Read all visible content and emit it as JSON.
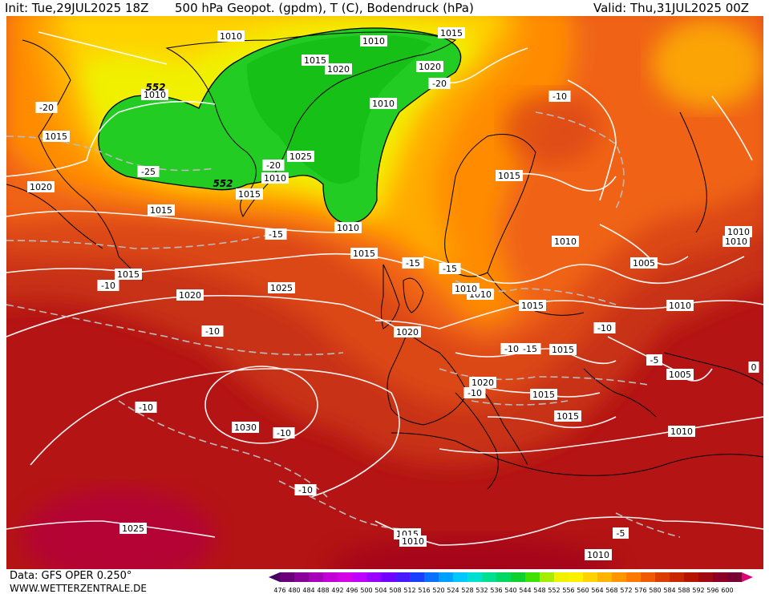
{
  "header": {
    "init": "Init: Tue,29JUL2025 18Z",
    "title": "500 hPa Geopot. (gpdm), T (C), Bodendruck (hPa)",
    "valid": "Valid: Thu,31JUL2025 00Z"
  },
  "footer": {
    "data_source": "Data: GFS OPER 0.250°",
    "website": "WWW.WETTERZENTRALE.DE"
  },
  "scale": {
    "values": [
      "476",
      "480",
      "484",
      "488",
      "492",
      "496",
      "500",
      "504",
      "508",
      "512",
      "516",
      "520",
      "524",
      "528",
      "532",
      "536",
      "540",
      "544",
      "548",
      "552",
      "556",
      "560",
      "564",
      "568",
      "572",
      "576",
      "580",
      "584",
      "588",
      "592",
      "596",
      "600"
    ],
    "colors": [
      "#6b007a",
      "#8a0099",
      "#a600b8",
      "#c200d6",
      "#d600e6",
      "#c000ff",
      "#9a00ff",
      "#7000ff",
      "#4a18ff",
      "#1a40ff",
      "#0a70ff",
      "#00a0ff",
      "#00c8ff",
      "#00e0d0",
      "#00e090",
      "#00d860",
      "#10d030",
      "#40e000",
      "#a8ec00",
      "#f0f000",
      "#fff000",
      "#ffd200",
      "#ffb400",
      "#ff9600",
      "#ff7800",
      "#f05a00",
      "#dc3c00",
      "#c82800",
      "#b41400",
      "#a00a14",
      "#8c0028",
      "#780032"
    ],
    "start_color": "#4a0060",
    "end_color": "#e0007a"
  },
  "map": {
    "isobar_labels": [
      {
        "t": "1010"
      },
      {
        "t": "1010"
      },
      {
        "t": "1015"
      },
      {
        "t": "1020"
      },
      {
        "t": "1015"
      },
      {
        "t": "1020"
      },
      {
        "t": "1010"
      },
      {
        "t": "1025"
      },
      {
        "t": "1010"
      },
      {
        "t": "1015"
      },
      {
        "t": "1010"
      },
      {
        "t": "1015"
      },
      {
        "t": "1020"
      },
      {
        "t": "1015"
      },
      {
        "t": "1010"
      },
      {
        "t": "1015"
      },
      {
        "t": "1015"
      },
      {
        "t": "1010"
      },
      {
        "t": "1015"
      },
      {
        "t": "1010"
      },
      {
        "t": "1005"
      },
      {
        "t": "1010"
      },
      {
        "t": "1020"
      },
      {
        "t": "1025"
      },
      {
        "t": "1015"
      },
      {
        "t": "1010"
      },
      {
        "t": "1020"
      },
      {
        "t": "1015"
      },
      {
        "t": "1030"
      },
      {
        "t": "1020"
      },
      {
        "t": "1015"
      },
      {
        "t": "1005"
      },
      {
        "t": "1010"
      },
      {
        "t": "1015"
      },
      {
        "t": "1010"
      },
      {
        "t": "1015"
      },
      {
        "t": "1025"
      },
      {
        "t": "1010"
      },
      {
        "t": "1010"
      },
      {
        "t": "1010"
      }
    ],
    "temp_labels": [
      {
        "t": "-20"
      },
      {
        "t": "-20"
      },
      {
        "t": "-10"
      },
      {
        "t": "-25"
      },
      {
        "t": "-20"
      },
      {
        "t": "-15"
      },
      {
        "t": "-15"
      },
      {
        "t": "-15"
      },
      {
        "t": "-10"
      },
      {
        "t": "-10"
      },
      {
        "t": "-10"
      },
      {
        "t": "-15"
      },
      {
        "t": "-10"
      },
      {
        "t": "-5"
      },
      {
        "t": "-10"
      },
      {
        "t": "-10"
      },
      {
        "t": "-10"
      },
      {
        "t": "-5"
      },
      {
        "t": "0"
      },
      {
        "t": "-10"
      }
    ],
    "geopot_labels": [
      {
        "t": "552"
      },
      {
        "t": "552"
      }
    ]
  }
}
